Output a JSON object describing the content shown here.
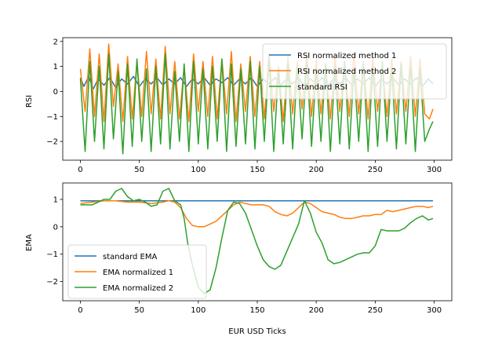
{
  "chart_data": [
    {
      "type": "line",
      "xlabel": "",
      "ylabel": "RSI",
      "xlim": [
        -14.95,
        314.95
      ],
      "ylim": [
        -2.75,
        2.15
      ],
      "xticks": [
        0,
        50,
        100,
        150,
        200,
        250,
        300
      ],
      "yticks": [
        -2,
        -1,
        0,
        1,
        2
      ],
      "grid": false,
      "legend_position": "top-right",
      "series": [
        {
          "name": "RSI normalized method 1",
          "color": "#1f77b4",
          "x": [
            0,
            3,
            7,
            11,
            15,
            20,
            25,
            30,
            35,
            40,
            45,
            50,
            55,
            60,
            65,
            70,
            75,
            80,
            85,
            90,
            95,
            100,
            105,
            110,
            115,
            120,
            125,
            130,
            135,
            140,
            145,
            150,
            155,
            160,
            165,
            170,
            175,
            180,
            185,
            190,
            195,
            200,
            205,
            210,
            215,
            220,
            225,
            230,
            235,
            240,
            245,
            250,
            255,
            260,
            265,
            270,
            275,
            280,
            285,
            290,
            295,
            299
          ],
          "y": [
            0.55,
            0.2,
            0.6,
            0.1,
            0.5,
            0.25,
            0.55,
            0.15,
            0.5,
            0.3,
            0.6,
            0.2,
            0.5,
            0.3,
            0.55,
            0.25,
            0.5,
            0.3,
            0.55,
            0.2,
            0.5,
            0.3,
            0.55,
            0.25,
            0.5,
            0.35,
            0.55,
            0.25,
            0.5,
            0.3,
            0.55,
            0.2,
            0.5,
            0.3,
            0.55,
            0.25,
            0.5,
            0.3,
            0.55,
            0.2,
            0.5,
            0.3,
            0.55,
            0.25,
            0.5,
            0.3,
            0.55,
            0.25,
            0.5,
            0.3,
            0.55,
            0.2,
            0.5,
            0.3,
            0.55,
            0.25,
            0.5,
            0.3,
            0.55,
            0.2,
            0.5,
            0.3
          ]
        },
        {
          "name": "RSI normalized method 2",
          "color": "#ff7f0e",
          "x": [
            0,
            4,
            8,
            12,
            16,
            20,
            24,
            28,
            32,
            36,
            40,
            44,
            48,
            52,
            56,
            60,
            64,
            68,
            72,
            76,
            80,
            84,
            88,
            92,
            96,
            100,
            104,
            108,
            112,
            116,
            120,
            124,
            128,
            132,
            136,
            140,
            144,
            148,
            152,
            156,
            160,
            164,
            168,
            172,
            176,
            180,
            184,
            188,
            192,
            196,
            200,
            204,
            208,
            212,
            216,
            220,
            224,
            228,
            232,
            236,
            240,
            244,
            248,
            252,
            256,
            260,
            264,
            268,
            272,
            276,
            280,
            284,
            288,
            292,
            296,
            299
          ],
          "y": [
            0.9,
            -0.8,
            1.7,
            -1.0,
            1.5,
            -1.2,
            1.9,
            -0.6,
            1.1,
            -1.2,
            1.4,
            -1.1,
            1.2,
            -1.0,
            1.6,
            -0.9,
            1.3,
            -1.1,
            1.8,
            -0.9,
            1.2,
            -1.1,
            1.0,
            -1.2,
            1.5,
            -0.8,
            1.2,
            -1.0,
            1.4,
            -1.1,
            1.3,
            -0.9,
            1.6,
            -1.2,
            1.1,
            -0.8,
            1.4,
            -1.0,
            1.2,
            -1.1,
            1.5,
            -0.8,
            1.0,
            -1.2,
            1.4,
            -0.9,
            1.2,
            -0.7,
            1.5,
            -1.0,
            1.3,
            -0.9,
            1.1,
            -1.1,
            1.4,
            -0.8,
            1.2,
            -1.0,
            1.5,
            -0.9,
            1.2,
            -1.1,
            1.4,
            -0.8,
            1.1,
            -1.0,
            1.3,
            -0.9,
            1.2,
            -0.8,
            1.4,
            -1.0,
            1.3,
            -0.9,
            -1.1,
            -0.7
          ]
        },
        {
          "name": "standard RSI",
          "color": "#2ca02c",
          "x": [
            0,
            4,
            8,
            12,
            16,
            20,
            24,
            28,
            32,
            36,
            40,
            44,
            48,
            52,
            56,
            60,
            64,
            68,
            72,
            76,
            80,
            84,
            88,
            92,
            96,
            100,
            104,
            108,
            112,
            116,
            120,
            124,
            128,
            132,
            136,
            140,
            144,
            148,
            152,
            156,
            160,
            164,
            168,
            172,
            176,
            180,
            184,
            188,
            192,
            196,
            200,
            204,
            208,
            212,
            216,
            220,
            224,
            228,
            232,
            236,
            240,
            244,
            248,
            252,
            256,
            260,
            264,
            268,
            272,
            276,
            280,
            284,
            288,
            292,
            296,
            299
          ],
          "y": [
            0.5,
            -2.4,
            1.2,
            -2.0,
            1.0,
            -2.3,
            1.5,
            -1.9,
            0.8,
            -2.5,
            1.1,
            -2.2,
            1.3,
            -2.0,
            0.9,
            -2.4,
            1.0,
            -2.1,
            1.5,
            -2.3,
            0.8,
            -2.0,
            1.1,
            -2.4,
            1.2,
            -2.1,
            0.9,
            -2.3,
            1.0,
            -2.0,
            1.3,
            -2.4,
            1.1,
            -2.2,
            0.9,
            -2.1,
            1.2,
            -2.3,
            1.0,
            -2.0,
            1.3,
            -2.4,
            0.9,
            -2.1,
            1.1,
            -2.3,
            1.0,
            -1.9,
            1.2,
            -2.2,
            0.9,
            -2.0,
            1.1,
            -2.4,
            1.0,
            -2.1,
            1.2,
            -2.3,
            0.9,
            -2.0,
            1.1,
            -2.4,
            1.0,
            -2.2,
            1.2,
            -2.0,
            0.9,
            -2.3,
            1.1,
            -2.1,
            1.0,
            -2.4,
            0.9,
            -2.0,
            -1.5,
            -1.2
          ]
        }
      ]
    },
    {
      "type": "line",
      "xlabel": "EUR USD Ticks",
      "ylabel": "EMA",
      "xlim": [
        -14.95,
        314.95
      ],
      "ylim": [
        -2.7,
        1.6
      ],
      "xticks": [
        0,
        50,
        100,
        150,
        200,
        250,
        300
      ],
      "yticks": [
        -2,
        -1,
        0,
        1
      ],
      "grid": false,
      "legend_position": "lower-left",
      "series": [
        {
          "name": " standard EMA",
          "color": "#1f77b4",
          "x": [
            0,
            299
          ],
          "y": [
            0.95,
            0.95
          ]
        },
        {
          "name": "EMA normalized 1",
          "color": "#ff7f0e",
          "x": [
            0,
            10,
            20,
            30,
            40,
            50,
            60,
            70,
            75,
            80,
            85,
            90,
            95,
            100,
            105,
            110,
            115,
            120,
            125,
            130,
            135,
            140,
            145,
            150,
            155,
            160,
            165,
            170,
            175,
            180,
            185,
            190,
            195,
            200,
            205,
            210,
            215,
            220,
            225,
            230,
            235,
            240,
            245,
            250,
            255,
            260,
            265,
            270,
            275,
            280,
            285,
            290,
            295,
            299
          ],
          "y": [
            0.85,
            0.9,
            0.95,
            0.95,
            0.9,
            0.9,
            0.85,
            0.9,
            0.95,
            0.9,
            0.7,
            0.3,
            0.05,
            0.0,
            0.0,
            0.1,
            0.2,
            0.4,
            0.6,
            0.8,
            0.9,
            0.85,
            0.8,
            0.8,
            0.8,
            0.75,
            0.55,
            0.45,
            0.4,
            0.5,
            0.7,
            0.9,
            0.85,
            0.7,
            0.55,
            0.5,
            0.45,
            0.35,
            0.3,
            0.3,
            0.35,
            0.4,
            0.4,
            0.45,
            0.45,
            0.6,
            0.55,
            0.6,
            0.65,
            0.7,
            0.75,
            0.75,
            0.7,
            0.75
          ]
        },
        {
          "name": "EMA normalized 2",
          "color": "#2ca02c",
          "x": [
            0,
            10,
            20,
            25,
            30,
            35,
            40,
            45,
            50,
            55,
            60,
            65,
            70,
            75,
            80,
            85,
            88,
            91,
            95,
            100,
            105,
            110,
            115,
            120,
            125,
            130,
            135,
            140,
            145,
            150,
            155,
            160,
            165,
            170,
            175,
            180,
            185,
            190,
            195,
            200,
            205,
            210,
            215,
            220,
            225,
            230,
            235,
            240,
            245,
            250,
            255,
            260,
            265,
            270,
            275,
            280,
            285,
            290,
            295,
            299
          ],
          "y": [
            0.8,
            0.8,
            1.0,
            1.0,
            1.3,
            1.4,
            1.1,
            0.95,
            1.0,
            0.9,
            0.75,
            0.8,
            1.3,
            1.4,
            0.95,
            0.8,
            0.3,
            -0.6,
            -1.4,
            -2.2,
            -2.45,
            -2.3,
            -1.5,
            -0.4,
            0.6,
            0.9,
            0.85,
            0.5,
            -0.1,
            -0.7,
            -1.2,
            -1.45,
            -1.55,
            -1.4,
            -0.9,
            -0.4,
            0.1,
            0.95,
            0.5,
            -0.2,
            -0.6,
            -1.2,
            -1.35,
            -1.3,
            -1.2,
            -1.1,
            -1.0,
            -0.95,
            -0.95,
            -0.7,
            -0.1,
            -0.15,
            -0.15,
            -0.15,
            -0.05,
            0.15,
            0.3,
            0.4,
            0.25,
            0.3
          ]
        }
      ]
    }
  ]
}
